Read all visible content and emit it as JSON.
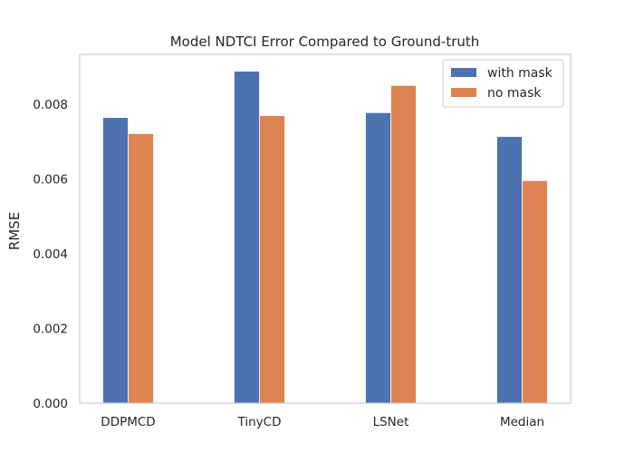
{
  "chart_data": {
    "type": "bar",
    "title": "Model NDTCI Error Compared to Ground-truth",
    "xlabel": "",
    "ylabel": "RMSE",
    "categories": [
      "DDPMCD",
      "TinyCD",
      "LSNet",
      "Median"
    ],
    "series": [
      {
        "name": "with mask",
        "color": "#4c72b0",
        "values": [
          0.00765,
          0.00889,
          0.00778,
          0.00714
        ]
      },
      {
        "name": "no mask",
        "color": "#dd8452",
        "values": [
          0.00722,
          0.0077,
          0.00851,
          0.00596
        ]
      }
    ],
    "ylim": [
      0,
      0.00934
    ],
    "yticks": [
      "0.000",
      "0.002",
      "0.004",
      "0.006",
      "0.008"
    ],
    "ytick_values": [
      0,
      0.002,
      0.004,
      0.006,
      0.008
    ],
    "grid": false,
    "legend_position": "top-right"
  }
}
